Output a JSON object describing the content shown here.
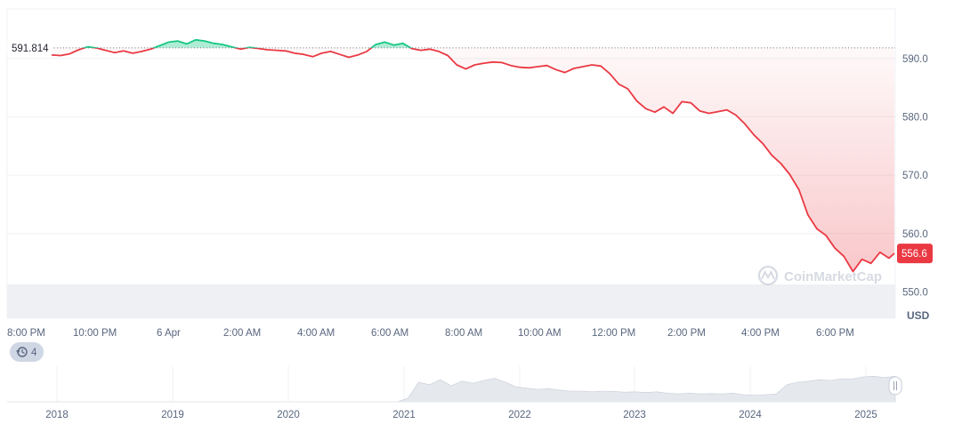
{
  "chart_data": {
    "type": "line",
    "x_ticks": [
      "8:00 PM",
      "10:00 PM",
      "6 Apr",
      "2:00 AM",
      "4:00 AM",
      "6:00 AM",
      "8:00 AM",
      "10:00 AM",
      "12:00 PM",
      "2:00 PM",
      "4:00 PM",
      "6:00 PM"
    ],
    "y_ticks": [
      "590.0",
      "580.0",
      "570.0",
      "560.0",
      "550.0"
    ],
    "y_tick_values": [
      590,
      580,
      570,
      560,
      550
    ],
    "ylim": [
      545.5,
      598.5
    ],
    "x_range_hours": [
      0,
      23.4
    ],
    "unit_label": "USD",
    "reference_value": 591.814,
    "reference_label": "591.814",
    "last_value_label": "556.6",
    "last_value": 556.6,
    "series": [
      {
        "x": [
          0,
          0.25,
          0.5,
          0.75,
          1,
          1.25,
          1.5,
          1.75,
          2,
          2.25,
          2.5,
          2.75,
          3,
          3.25,
          3.5,
          3.75,
          4,
          4.25,
          4.5,
          4.75,
          5,
          5.25,
          5.5,
          5.75,
          6,
          6.25,
          6.5,
          6.75,
          7,
          7.25,
          7.5,
          7.75,
          8,
          8.25,
          8.5,
          8.75,
          9,
          9.25,
          9.5,
          9.75,
          10,
          10.25,
          10.5,
          10.75,
          11,
          11.25,
          11.5,
          11.75,
          12,
          12.25,
          12.5,
          12.75,
          13,
          13.25,
          13.5,
          13.75,
          14,
          14.25,
          14.5,
          14.75,
          15,
          15.25,
          15.5,
          15.75,
          16,
          16.25,
          16.5,
          16.75,
          17,
          17.25,
          17.5,
          17.75,
          18,
          18.25,
          18.5,
          18.75,
          19,
          19.25,
          19.5,
          19.75,
          20,
          20.25,
          20.5,
          20.75,
          21,
          21.25,
          21.5,
          21.75,
          22,
          22.25,
          22.5,
          22.75,
          23,
          23.25,
          23.4
        ],
        "y": [
          590.6,
          590.5,
          590.8,
          591.5,
          592.0,
          591.8,
          591.4,
          591.0,
          591.3,
          590.9,
          591.2,
          591.6,
          592.2,
          592.8,
          593.0,
          592.5,
          593.2,
          593.0,
          592.6,
          592.4,
          592.0,
          591.6,
          591.9,
          591.7,
          591.5,
          591.4,
          591.3,
          590.9,
          590.7,
          590.3,
          590.9,
          591.2,
          590.7,
          590.2,
          590.6,
          591.2,
          592.4,
          592.8,
          592.3,
          592.6,
          591.7,
          591.4,
          591.6,
          591.2,
          590.5,
          588.9,
          588.2,
          588.9,
          589.2,
          589.4,
          589.3,
          588.8,
          588.5,
          588.4,
          588.6,
          588.8,
          588.1,
          587.6,
          588.3,
          588.6,
          588.9,
          588.7,
          587.4,
          585.6,
          584.8,
          582.7,
          581.4,
          580.8,
          581.7,
          580.6,
          582.6,
          582.4,
          581.0,
          580.6,
          580.9,
          581.2,
          580.3,
          578.8,
          576.9,
          575.4,
          573.4,
          572.0,
          570.1,
          567.5,
          563.2,
          560.8,
          559.7,
          557.5,
          556.1,
          553.5,
          555.6,
          554.9,
          556.8,
          555.8,
          556.6
        ]
      }
    ]
  },
  "watermark": {
    "text": "CoinMarketCap"
  },
  "history": {
    "count": "4"
  },
  "navigator": {
    "years": [
      "2018",
      "2019",
      "2020",
      "2021",
      "2022",
      "2023",
      "2024",
      "2025"
    ],
    "values": [
      0,
      0,
      0,
      0,
      0,
      0,
      0,
      0,
      0,
      0,
      0,
      0,
      0,
      0,
      0,
      0,
      0,
      0,
      0,
      0,
      0,
      0,
      0,
      0,
      0,
      0,
      0,
      0,
      0,
      0,
      0,
      0,
      0,
      0,
      0,
      0,
      0,
      0.1,
      0.55,
      0.48,
      0.62,
      0.45,
      0.58,
      0.52,
      0.6,
      0.66,
      0.55,
      0.42,
      0.38,
      0.35,
      0.37,
      0.33,
      0.3,
      0.3,
      0.28,
      0.3,
      0.29,
      0.27,
      0.28,
      0.26,
      0.28,
      0.24,
      0.22,
      0.24,
      0.22,
      0.23,
      0.22,
      0.24,
      0.2,
      0.18,
      0.2,
      0.22,
      0.48,
      0.55,
      0.58,
      0.62,
      0.6,
      0.65,
      0.64,
      0.7,
      0.72,
      0.68,
      0.72
    ]
  },
  "colors": {
    "up": "#16c784",
    "down": "#ea3943",
    "grid": "#eff2f5",
    "volume": "#eef0f3",
    "navigator_fill": "#e5e8ed"
  }
}
